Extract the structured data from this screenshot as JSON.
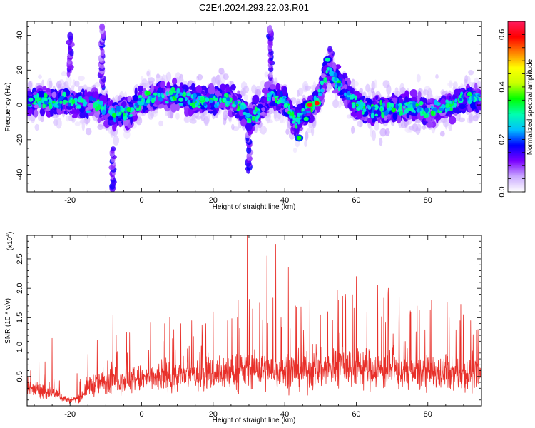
{
  "title": "C2E4.2024.293.22.03.R01",
  "chart_data": [
    {
      "type": "heatmap",
      "name": "spectrogram",
      "xlabel": "Height of straight line (km)",
      "ylabel": "Frequency (Hz)",
      "xlim": [
        -32,
        95
      ],
      "ylim": [
        -50,
        48
      ],
      "x_ticks": [
        -20,
        0,
        20,
        40,
        60,
        80
      ],
      "y_ticks": [
        -40,
        -20,
        0,
        20,
        40
      ],
      "ridge": [
        [
          -32,
          2
        ],
        [
          -28,
          3
        ],
        [
          -24,
          1
        ],
        [
          -20,
          2
        ],
        [
          -16,
          1
        ],
        [
          -12,
          0
        ],
        [
          -8,
          -6
        ],
        [
          -4,
          -4
        ],
        [
          0,
          2
        ],
        [
          4,
          5
        ],
        [
          8,
          6
        ],
        [
          12,
          4
        ],
        [
          16,
          2
        ],
        [
          20,
          3
        ],
        [
          24,
          4
        ],
        [
          28,
          -2
        ],
        [
          30,
          -8
        ],
        [
          33,
          -4
        ],
        [
          36,
          5
        ],
        [
          40,
          2
        ],
        [
          43,
          -10
        ],
        [
          45,
          -4
        ],
        [
          48,
          0
        ],
        [
          50,
          6
        ],
        [
          52,
          22
        ],
        [
          54,
          15
        ],
        [
          56,
          10
        ],
        [
          60,
          0
        ],
        [
          64,
          -2
        ],
        [
          68,
          -3
        ],
        [
          72,
          -2
        ],
        [
          76,
          -1
        ],
        [
          80,
          -4
        ],
        [
          84,
          -2
        ],
        [
          88,
          2
        ],
        [
          92,
          4
        ],
        [
          95,
          3
        ]
      ],
      "streaks": [
        {
          "x": -20,
          "y_top": 40,
          "y_bottom": 18
        },
        {
          "x": -11,
          "y_top": 45,
          "y_bottom": 10
        },
        {
          "x": 30,
          "y_top": -8,
          "y_bottom": -38
        },
        {
          "x": 36,
          "y_top": 45,
          "y_bottom": 12
        },
        {
          "x": 53,
          "y_top": 32,
          "y_bottom": 14
        },
        {
          "x": -8,
          "y_top": -25,
          "y_bottom": -48
        }
      ],
      "hotspots": [
        [
          47,
          0,
          0.62
        ],
        [
          49,
          1,
          0.58
        ],
        [
          44,
          -19,
          0.35
        ],
        [
          52,
          26,
          0.3
        ],
        [
          46,
          -8,
          0.32
        ],
        [
          11,
          3,
          0.3
        ],
        [
          -31,
          3,
          0.3
        ]
      ]
    },
    {
      "type": "colorbar",
      "name": "amplitude-scale",
      "label": "Normalized spectral amplitude",
      "range": [
        0.0,
        0.65
      ],
      "ticks": [
        0.0,
        0.2,
        0.4,
        0.6
      ],
      "tick_labels": [
        "0.0",
        "0.2",
        "0.4",
        "0.6"
      ],
      "colors": [
        "#ffffff",
        "#c9a8ff",
        "#7b00ff",
        "#0000ff",
        "#00bfff",
        "#00ffb0",
        "#00ff00",
        "#c8ff00",
        "#ffff00",
        "#ff8000",
        "#ff0000",
        "#ff1a5e"
      ]
    },
    {
      "type": "line",
      "name": "snr",
      "xlabel": "Height of straight line (km)",
      "ylabel": "SNR (10 * v/v)",
      "scale_label": "(x10",
      "scale_exp": "4",
      "scale_close": ")",
      "xlim": [
        -32,
        95
      ],
      "ylim": [
        0,
        2.9
      ],
      "x_ticks": [
        -20,
        0,
        20,
        40,
        60,
        80
      ],
      "y_ticks": [
        0.5,
        1.0,
        1.5,
        2.0,
        2.5
      ],
      "y_tick_labels": [
        "0.5",
        "1.0",
        "1.5",
        "2.0",
        "2.5"
      ],
      "color": "#e8302a",
      "envelope": [
        [
          -32,
          0.3
        ],
        [
          -28,
          0.25
        ],
        [
          -24,
          0.2
        ],
        [
          -20,
          0.08
        ],
        [
          -17,
          0.15
        ],
        [
          -15,
          0.35
        ],
        [
          -10,
          0.4
        ],
        [
          -5,
          0.45
        ],
        [
          0,
          0.45
        ],
        [
          10,
          0.5
        ],
        [
          20,
          0.55
        ],
        [
          30,
          0.6
        ],
        [
          40,
          0.6
        ],
        [
          50,
          0.6
        ],
        [
          55,
          0.7
        ],
        [
          60,
          0.65
        ],
        [
          70,
          0.6
        ],
        [
          80,
          0.55
        ],
        [
          90,
          0.55
        ],
        [
          95,
          0.5
        ]
      ],
      "peaks": [
        [
          -31,
          0.6
        ],
        [
          -25,
          1.15
        ],
        [
          -18,
          0.55
        ],
        [
          -15,
          0.88
        ],
        [
          -8,
          1.55
        ],
        [
          -4,
          0.9
        ],
        [
          2,
          0.95
        ],
        [
          6,
          1.1
        ],
        [
          9,
          1.3
        ],
        [
          11,
          1.4
        ],
        [
          14,
          1.45
        ],
        [
          17,
          1.2
        ],
        [
          20,
          1.6
        ],
        [
          24,
          1.45
        ],
        [
          27,
          1.8
        ],
        [
          29.5,
          2.9
        ],
        [
          31,
          1.65
        ],
        [
          33,
          1.75
        ],
        [
          35,
          2.55
        ],
        [
          37.5,
          2.75
        ],
        [
          39,
          1.5
        ],
        [
          41,
          2.35
        ],
        [
          43,
          1.7
        ],
        [
          47,
          1.8
        ],
        [
          50,
          1.55
        ],
        [
          52,
          1.6
        ],
        [
          55,
          1.8
        ],
        [
          57,
          1.9
        ],
        [
          60,
          2.2
        ],
        [
          63,
          1.6
        ],
        [
          66,
          2.05
        ],
        [
          69,
          2.0
        ],
        [
          72,
          1.85
        ],
        [
          75,
          1.55
        ],
        [
          77,
          1.7
        ],
        [
          81,
          1.8
        ],
        [
          86,
          1.5
        ],
        [
          89,
          1.45
        ],
        [
          92,
          1.45
        ],
        [
          94,
          1.3
        ]
      ]
    }
  ]
}
